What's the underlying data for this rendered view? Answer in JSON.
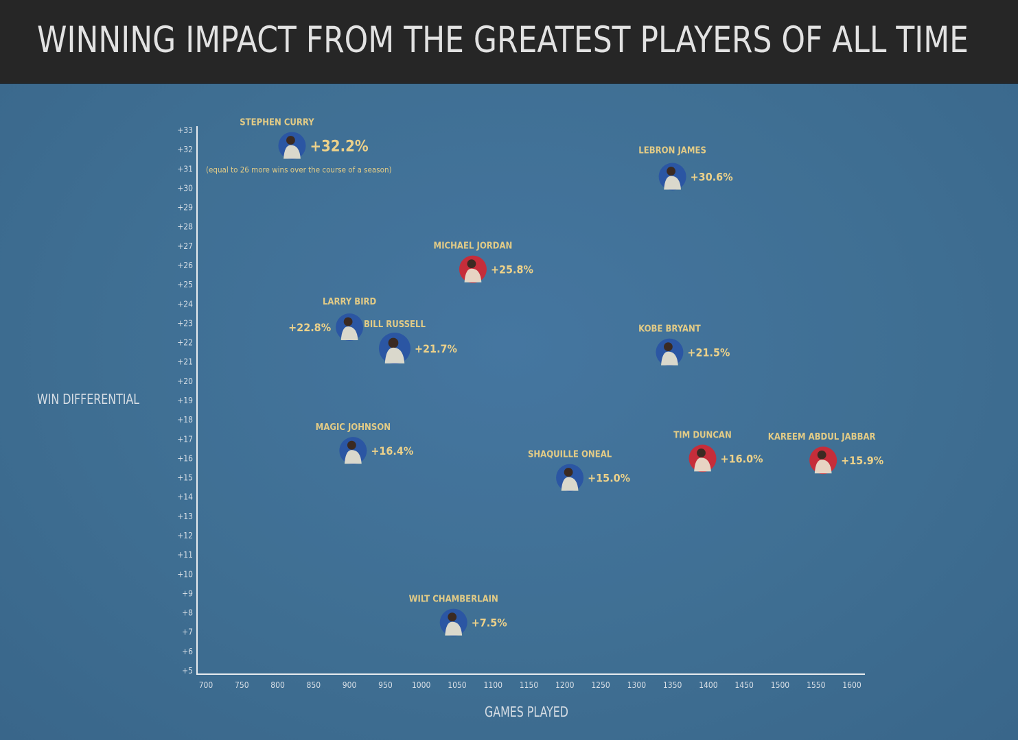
{
  "title": "WINNING IMPACT FROM THE GREATEST PLAYERS OF ALL TIME",
  "colors": {
    "header_bg": "#262626",
    "panel_bg": "#3e6f92",
    "label_gold": "#e2cb86",
    "axis_white": "#e8ecef"
  },
  "chart_data": {
    "type": "scatter",
    "xlabel": "GAMES PLAYED",
    "ylabel": "WIN DIFFERENTIAL",
    "xlim": [
      700,
      1600
    ],
    "ylim": [
      5,
      33
    ],
    "x_ticks": [
      "700",
      "750",
      "800",
      "850",
      "900",
      "950",
      "1000",
      "1050",
      "1100",
      "1150",
      "1200",
      "1250",
      "1300",
      "1350",
      "1400",
      "1450",
      "1500",
      "1550",
      "1600"
    ],
    "y_ticks": [
      "+5",
      "+6",
      "+7",
      "+8",
      "+9",
      "+10",
      "+11",
      "+12",
      "+13",
      "+14",
      "+15",
      "+16",
      "+17",
      "+18",
      "+19",
      "+20",
      "+21",
      "+22",
      "+23",
      "+24",
      "+25",
      "+26",
      "+27",
      "+28",
      "+29",
      "+30",
      "+31",
      "+32",
      "+33"
    ],
    "grid": false,
    "points": [
      {
        "name": "STEPHEN CURRY",
        "label": "+32.2%",
        "x": 820,
        "y": 32.2,
        "note": "(equal to 26 more wins over the course of a season)",
        "jersey": "#2b56a3"
      },
      {
        "name": "LEBRON JAMES",
        "label": "+30.6%",
        "x": 1350,
        "y": 30.6,
        "jersey": "#2b56a3"
      },
      {
        "name": "MICHAEL JORDAN",
        "label": "+25.8%",
        "x": 1072,
        "y": 25.8,
        "jersey": "#c62d3a"
      },
      {
        "name": "LARRY BIRD",
        "label": "+22.8%",
        "x": 900,
        "y": 22.8,
        "jersey": "#2b56a3"
      },
      {
        "name": "BILL RUSSELL",
        "label": "+21.7%",
        "x": 963,
        "y": 21.7,
        "jersey": "#2b56a3"
      },
      {
        "name": "KOBE BRYANT",
        "label": "+21.5%",
        "x": 1346,
        "y": 21.5,
        "jersey": "#2b56a3"
      },
      {
        "name": "MAGIC JOHNSON",
        "label": "+16.4%",
        "x": 905,
        "y": 16.4,
        "jersey": "#2b56a3"
      },
      {
        "name": "SHAQUILLE ONEAL",
        "label": "+15.0%",
        "x": 1207,
        "y": 15.0,
        "jersey": "#2b56a3"
      },
      {
        "name": "TIM DUNCAN",
        "label": "+16.0%",
        "x": 1392,
        "y": 16.0,
        "jersey": "#c62d3a"
      },
      {
        "name": "KAREEM ABDUL JABBAR",
        "label": "+15.9%",
        "x": 1560,
        "y": 15.9,
        "jersey": "#c62d3a"
      },
      {
        "name": "WILT CHAMBERLAIN",
        "label": "+7.5%",
        "x": 1045,
        "y": 7.5,
        "jersey": "#2b56a3"
      }
    ]
  }
}
